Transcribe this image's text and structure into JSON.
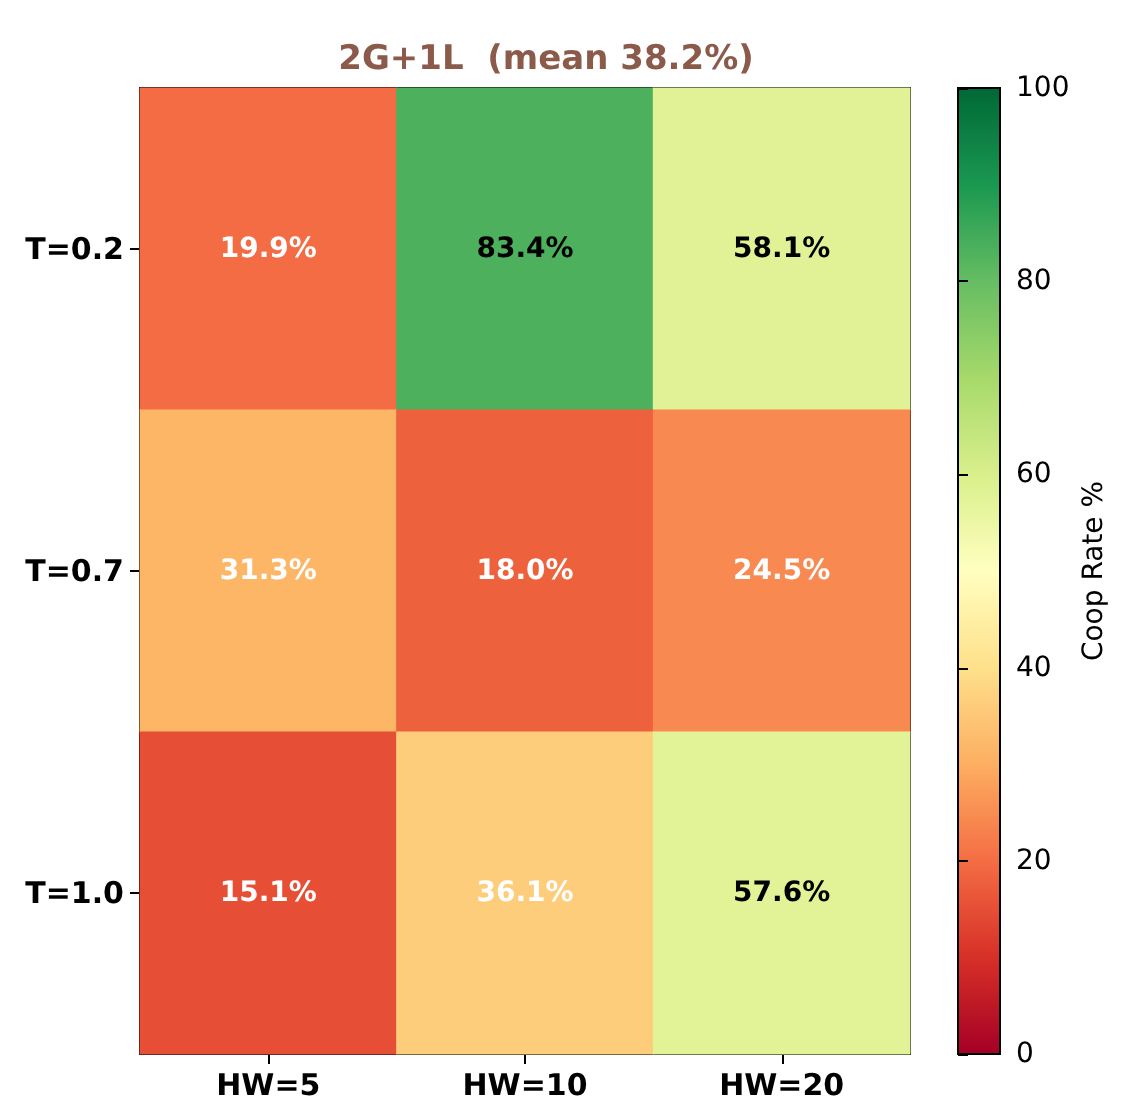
{
  "chart_data": {
    "type": "heatmap",
    "title": "2G+1L  (mean 38.2%)",
    "categories": [
      "HW=5",
      "HW=10",
      "HW=20"
    ],
    "y_categories": [
      "T=0.2",
      "T=0.7",
      "T=1.0"
    ],
    "cells": [
      [
        19.9,
        83.4,
        58.1
      ],
      [
        31.3,
        18.0,
        24.5
      ],
      [
        15.1,
        36.1,
        57.6
      ]
    ],
    "cell_labels": [
      [
        "19.9%",
        "83.4%",
        "58.1%"
      ],
      [
        "31.3%",
        "18.0%",
        "24.5%"
      ],
      [
        "15.1%",
        "36.1%",
        "57.6%"
      ]
    ],
    "clim": [
      0,
      100
    ],
    "cticks": [
      0,
      20,
      40,
      60,
      80,
      100
    ],
    "clabel": "Coop Rate %"
  }
}
